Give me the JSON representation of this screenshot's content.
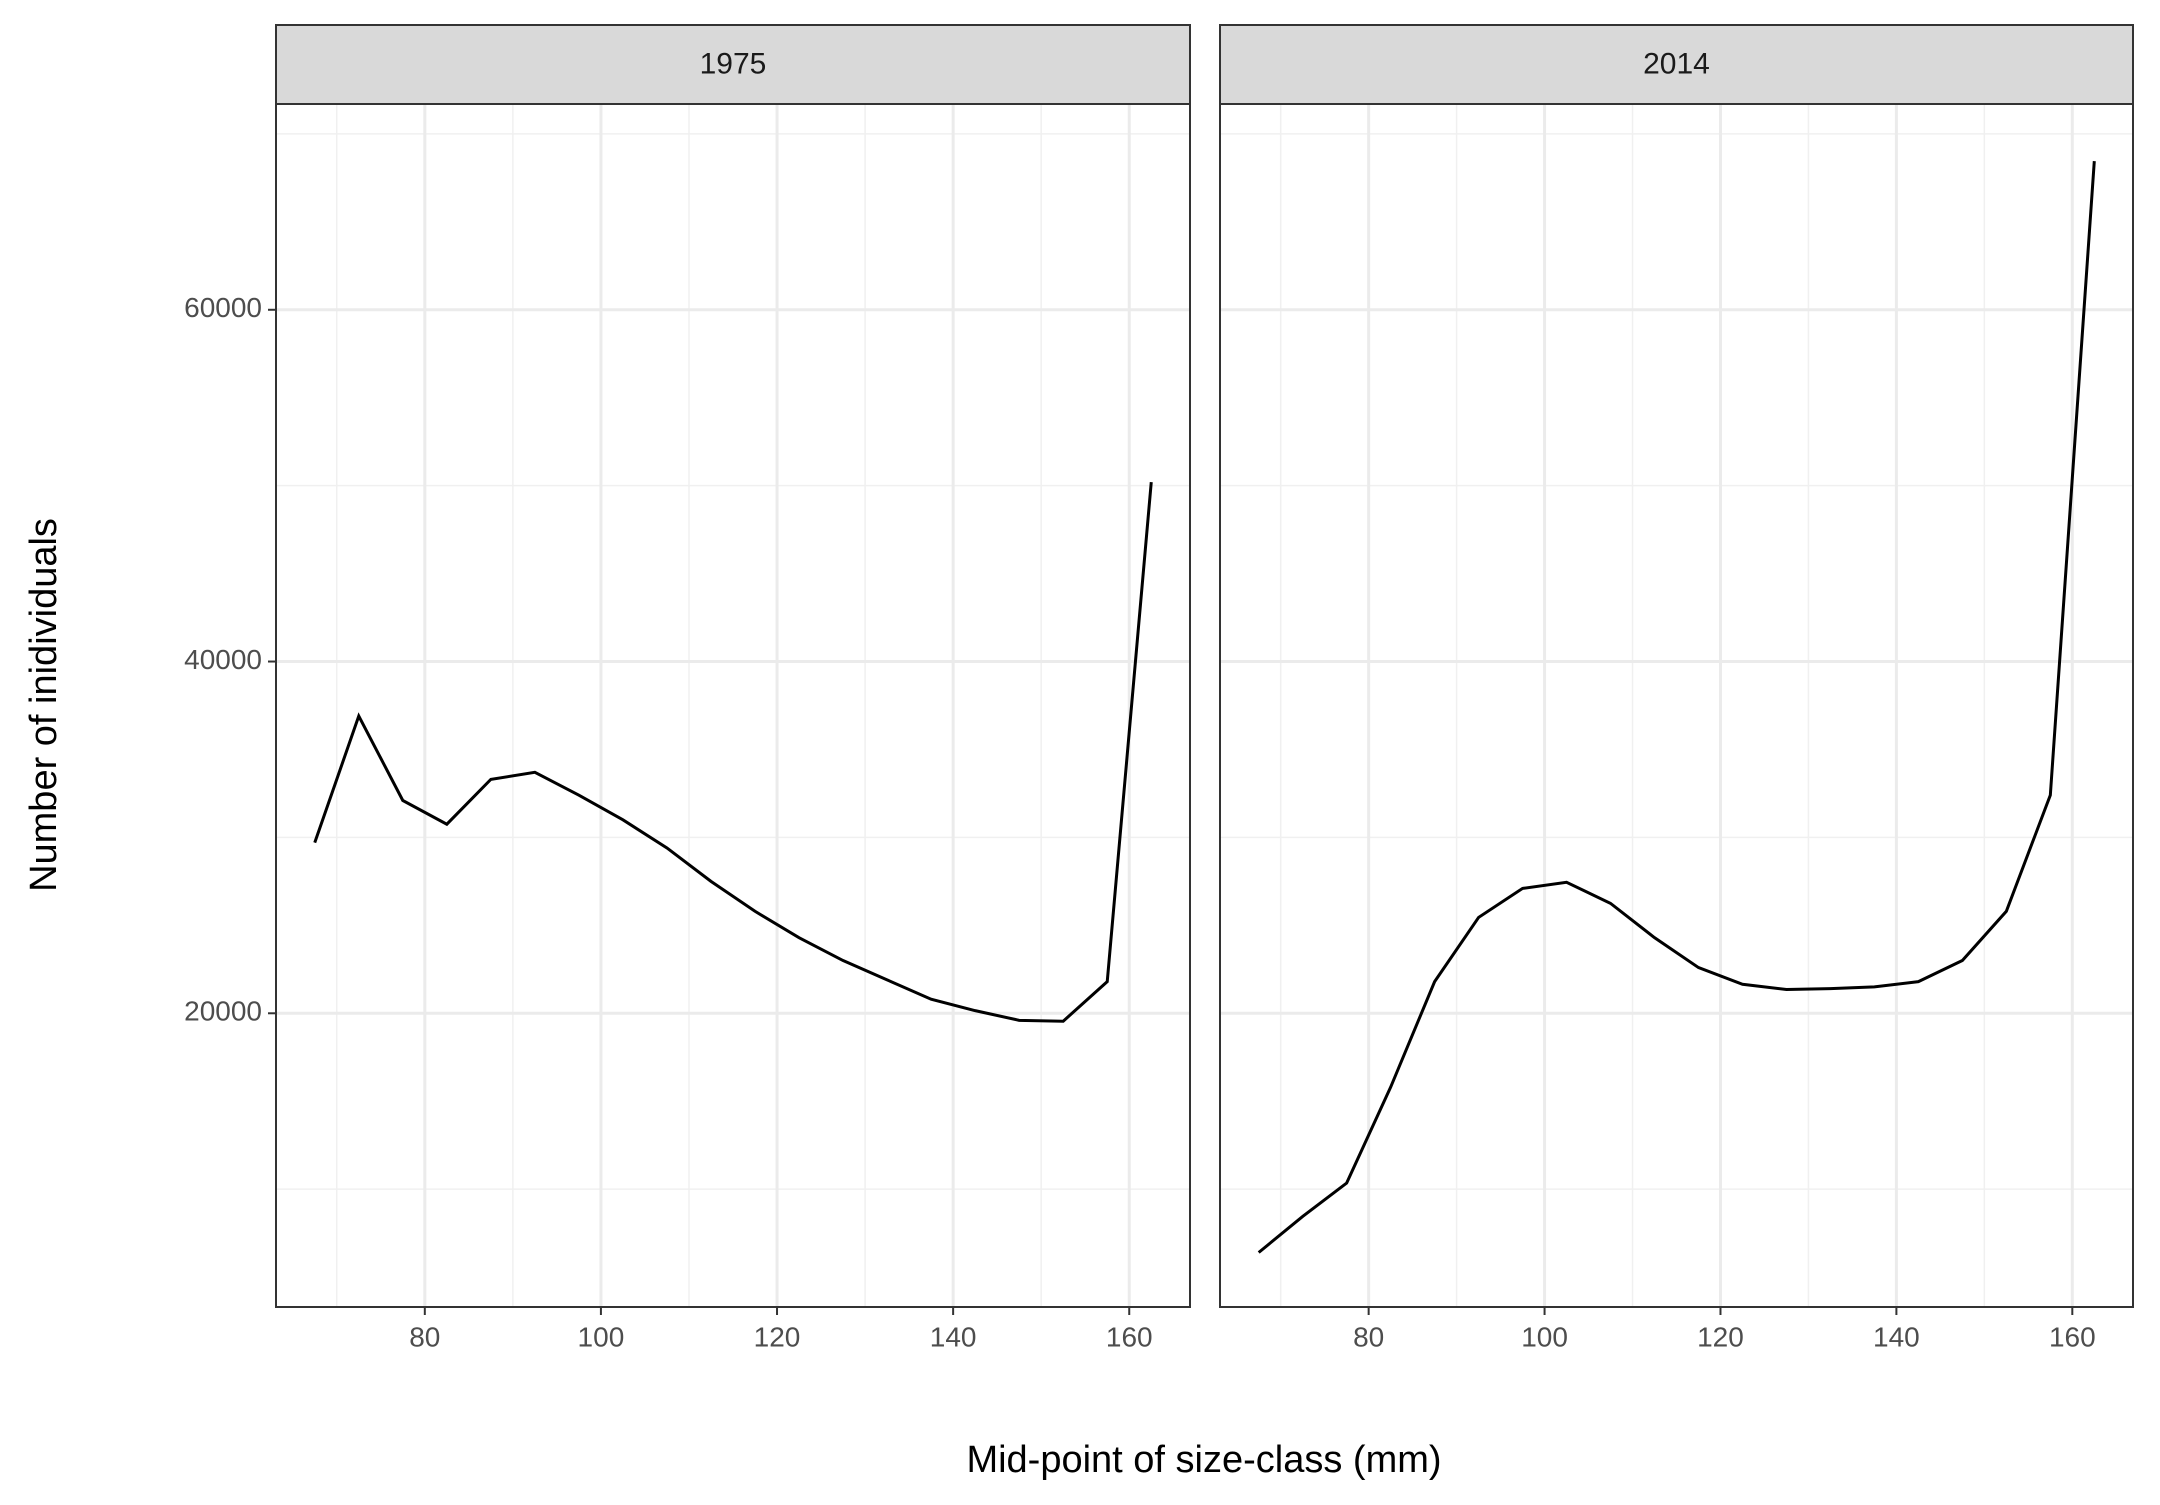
{
  "chart_data": {
    "type": "line",
    "xlabel": "Mid-point of size-class (mm)",
    "ylabel": "Number of inidividuals",
    "x": [
      67.5,
      72.5,
      77.5,
      82.5,
      87.5,
      92.5,
      97.5,
      102.5,
      107.5,
      112.5,
      117.5,
      122.5,
      127.5,
      132.5,
      137.5,
      142.5,
      147.5,
      152.5,
      157.5,
      162.5
    ],
    "panels": [
      {
        "title": "1975",
        "color": "#000000",
        "values": [
          29700,
          36900,
          32100,
          30750,
          33300,
          33700,
          32400,
          31000,
          29400,
          27500,
          25800,
          24300,
          23000,
          21900,
          20800,
          20150,
          19600,
          19550,
          21800,
          50200
        ]
      },
      {
        "title": "2014",
        "color": "#000000",
        "values": [
          6400,
          8450,
          10350,
          15800,
          21800,
          25450,
          27100,
          27450,
          26250,
          24300,
          22600,
          21650,
          21350,
          21400,
          21500,
          21800,
          23000,
          25800,
          32400,
          68450
        ]
      }
    ],
    "xlim": [
      63.1,
      166.9
    ],
    "ylim": [
      3300,
      71700
    ],
    "xticks": [
      80,
      100,
      120,
      140,
      160
    ],
    "yticks": [
      20000,
      40000,
      60000
    ],
    "minor_xticks": [
      70,
      90,
      110,
      130,
      150
    ],
    "minor_yticks": [
      10000,
      30000,
      50000,
      70000
    ],
    "grid": true
  }
}
